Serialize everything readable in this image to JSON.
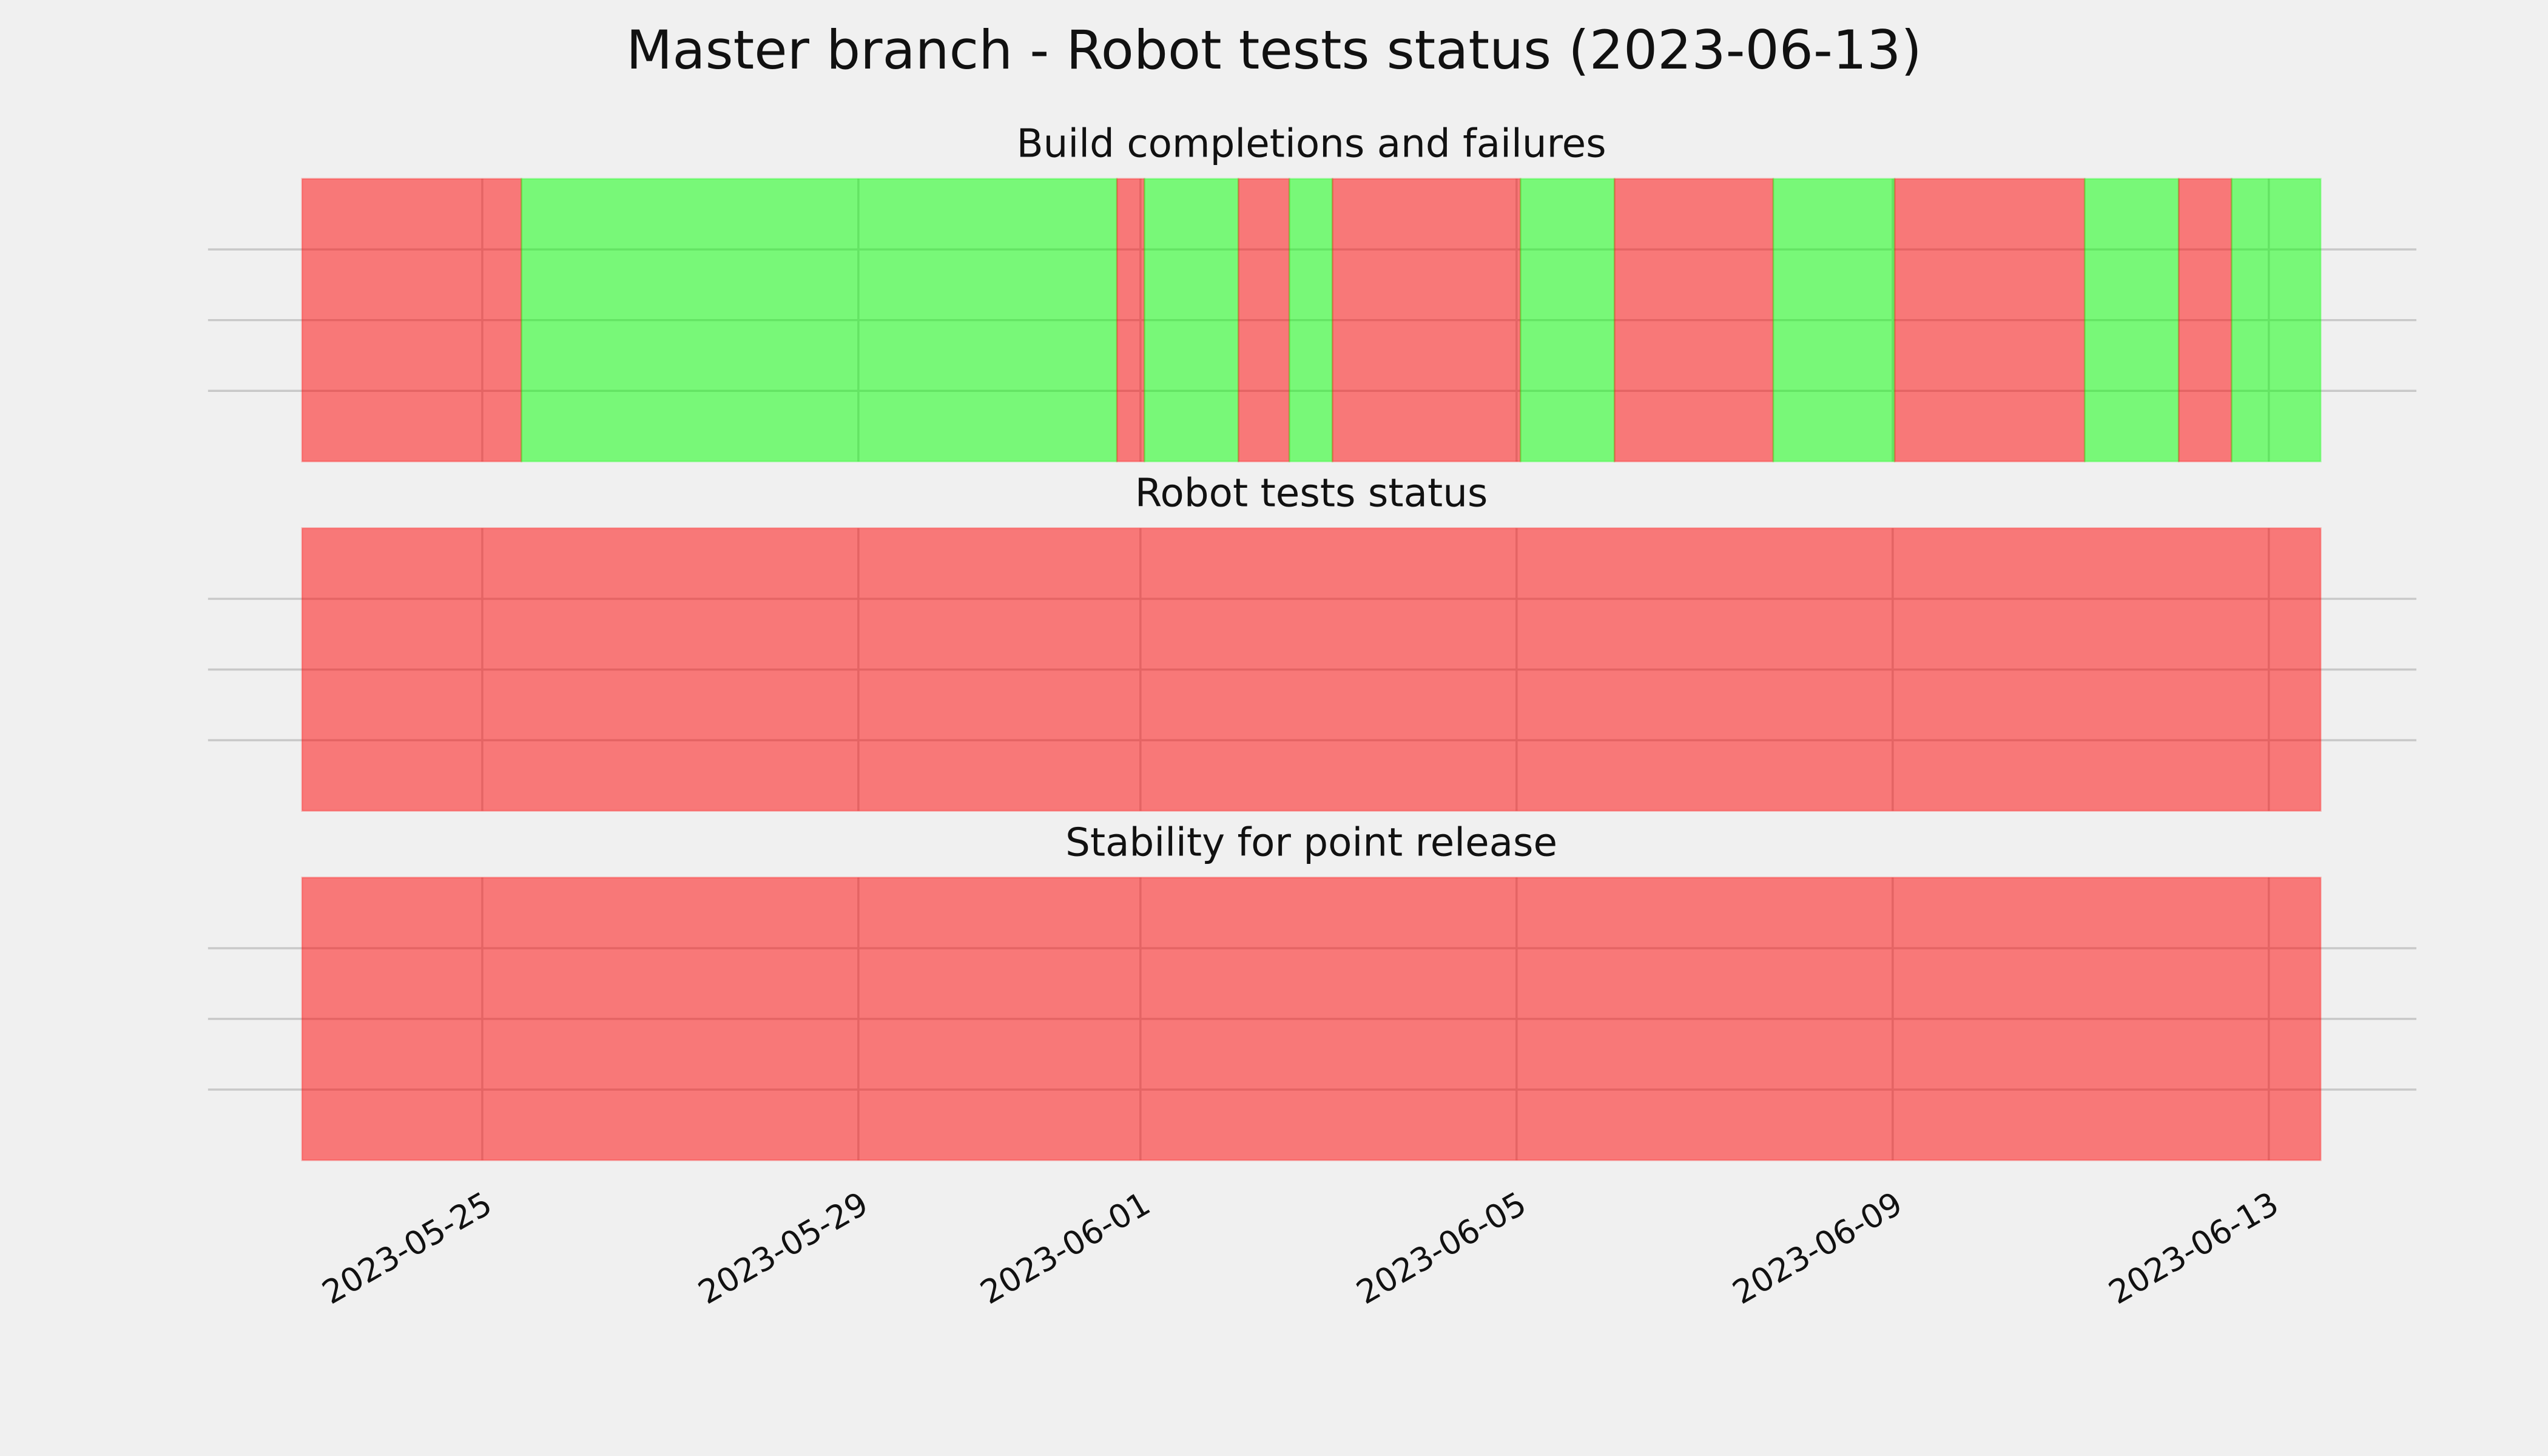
{
  "title": "Master branch - Robot tests status (2023-06-13)",
  "chart_data": [
    {
      "type": "span",
      "title": "Build completions and failures",
      "xlim": [
        "2023-05-22T02:00",
        "2023-06-14T13:40"
      ],
      "xticks": [
        "2023-05-25",
        "2023-05-29",
        "2023-06-01",
        "2023-06-05",
        "2023-06-09",
        "2023-06-13"
      ],
      "ylim": [
        0,
        1
      ],
      "yticks": [
        0.25,
        0.5,
        0.75
      ],
      "grid": true,
      "x_start": [
        "2023-05-23T02:00",
        "2023-05-25T10:00",
        "2023-05-31T18:00",
        "2023-06-01T01:00",
        "2023-06-02T01:00",
        "2023-06-02T14:00",
        "2023-06-03T01:00",
        "2023-06-05T01:00",
        "2023-06-06T01:00",
        "2023-06-07T17:30",
        "2023-06-09T00:30",
        "2023-06-11T01:00",
        "2023-06-12T01:00",
        "2023-06-12T14:30"
      ],
      "x_end": [
        "2023-05-25T10:00",
        "2023-05-31T18:00",
        "2023-06-01T01:00",
        "2023-06-02T01:00",
        "2023-06-02T14:00",
        "2023-06-03T01:00",
        "2023-06-05T01:00",
        "2023-06-06T01:00",
        "2023-06-07T17:30",
        "2023-06-09T00:30",
        "2023-06-11T01:00",
        "2023-06-12T01:00",
        "2023-06-12T14:30",
        "2023-06-13T13:15"
      ],
      "colors": [
        "#ff0000",
        "#00ff00",
        "#ff0000",
        "#00ff00",
        "#ff0000",
        "#00ff00",
        "#ff0000",
        "#00ff00",
        "#ff0000",
        "#00ff00",
        "#ff0000",
        "#00ff00",
        "#ff0000",
        "#00ff00"
      ]
    },
    {
      "type": "span",
      "title": "Robot tests status",
      "xlim": [
        "2023-05-22T02:00",
        "2023-06-14T13:40"
      ],
      "xticks": [
        "2023-05-25",
        "2023-05-29",
        "2023-06-01",
        "2023-06-05",
        "2023-06-09",
        "2023-06-13"
      ],
      "ylim": [
        0,
        1
      ],
      "yticks": [
        0.25,
        0.5,
        0.75
      ],
      "grid": true,
      "x_start": [
        "2023-05-23T02:00"
      ],
      "x_end": [
        "2023-06-13T13:15"
      ],
      "colors": [
        "#ff0000"
      ]
    },
    {
      "type": "span",
      "title": "Stability for point release",
      "xlim": [
        "2023-05-22T02:00",
        "2023-06-14T13:40"
      ],
      "xticks": [
        "2023-05-25",
        "2023-05-29",
        "2023-06-01",
        "2023-06-05",
        "2023-06-09",
        "2023-06-13"
      ],
      "ylim": [
        0,
        1
      ],
      "yticks": [
        0.25,
        0.5,
        0.75
      ],
      "grid": true,
      "tick_labels": true,
      "x_start": [
        "2023-05-23T02:00"
      ],
      "x_end": [
        "2023-06-13T13:15"
      ],
      "colors": [
        "#ff0000"
      ]
    }
  ]
}
